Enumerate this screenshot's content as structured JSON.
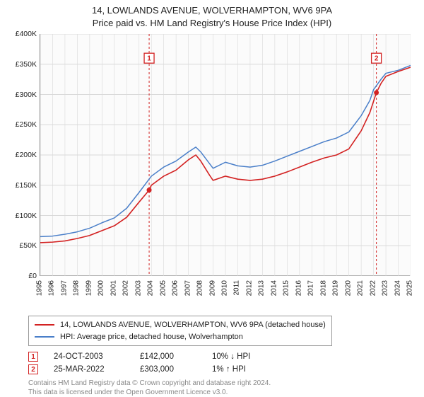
{
  "title_line1": "14, LOWLANDS AVENUE, WOLVERHAMPTON, WV6 9PA",
  "title_line2": "Price paid vs. HM Land Registry's House Price Index (HPI)",
  "chart": {
    "type": "line",
    "background_color": "#fbfbfb",
    "grid_color": "#d9d9d9",
    "axis_color": "#888888",
    "ylim": [
      0,
      400000
    ],
    "ytick_step": 50000,
    "y_tick_labels": [
      "£0",
      "£50K",
      "£100K",
      "£150K",
      "£200K",
      "£250K",
      "£300K",
      "£350K",
      "£400K"
    ],
    "xlim": [
      1995,
      2025
    ],
    "x_ticks": [
      1995,
      1996,
      1997,
      1998,
      1999,
      2000,
      2001,
      2002,
      2003,
      2004,
      2005,
      2006,
      2007,
      2008,
      2009,
      2010,
      2011,
      2012,
      2013,
      2014,
      2015,
      2016,
      2017,
      2018,
      2019,
      2020,
      2021,
      2022,
      2023,
      2024,
      2025
    ],
    "label_fontsize": 10.5,
    "series": [
      {
        "name": "property",
        "legend_label": "14, LOWLANDS AVENUE, WOLVERHAMPTON, WV6 9PA (detached house)",
        "color": "#d32222",
        "line_width": 1.6,
        "points": [
          [
            1995,
            55000
          ],
          [
            1996,
            56000
          ],
          [
            1997,
            58000
          ],
          [
            1998,
            62000
          ],
          [
            1999,
            67000
          ],
          [
            2000,
            75000
          ],
          [
            2001,
            83000
          ],
          [
            2002,
            97000
          ],
          [
            2003,
            122000
          ],
          [
            2003.82,
            142000
          ],
          [
            2004,
            150000
          ],
          [
            2005,
            165000
          ],
          [
            2006,
            175000
          ],
          [
            2007,
            192000
          ],
          [
            2007.6,
            200000
          ],
          [
            2008,
            190000
          ],
          [
            2008.7,
            167000
          ],
          [
            2009,
            158000
          ],
          [
            2010,
            165000
          ],
          [
            2011,
            160000
          ],
          [
            2012,
            158000
          ],
          [
            2013,
            160000
          ],
          [
            2014,
            165000
          ],
          [
            2015,
            172000
          ],
          [
            2016,
            180000
          ],
          [
            2017,
            188000
          ],
          [
            2018,
            195000
          ],
          [
            2019,
            200000
          ],
          [
            2020,
            210000
          ],
          [
            2021,
            240000
          ],
          [
            2021.7,
            270000
          ],
          [
            2022.23,
            303000
          ],
          [
            2022.6,
            318000
          ],
          [
            2023,
            330000
          ],
          [
            2024,
            338000
          ],
          [
            2025,
            345000
          ]
        ]
      },
      {
        "name": "hpi",
        "legend_label": "HPI: Average price, detached house, Wolverhampton",
        "color": "#4a7fc9",
        "line_width": 1.5,
        "points": [
          [
            1995,
            65000
          ],
          [
            1996,
            66000
          ],
          [
            1997,
            69000
          ],
          [
            1998,
            73000
          ],
          [
            1999,
            79000
          ],
          [
            2000,
            88000
          ],
          [
            2001,
            96000
          ],
          [
            2002,
            112000
          ],
          [
            2003,
            138000
          ],
          [
            2004,
            165000
          ],
          [
            2005,
            180000
          ],
          [
            2006,
            190000
          ],
          [
            2007,
            205000
          ],
          [
            2007.6,
            213000
          ],
          [
            2008,
            205000
          ],
          [
            2008.7,
            186000
          ],
          [
            2009,
            178000
          ],
          [
            2010,
            188000
          ],
          [
            2011,
            182000
          ],
          [
            2012,
            180000
          ],
          [
            2013,
            183000
          ],
          [
            2014,
            190000
          ],
          [
            2015,
            198000
          ],
          [
            2016,
            206000
          ],
          [
            2017,
            214000
          ],
          [
            2018,
            222000
          ],
          [
            2019,
            228000
          ],
          [
            2020,
            238000
          ],
          [
            2021,
            265000
          ],
          [
            2021.7,
            290000
          ],
          [
            2022,
            308000
          ],
          [
            2022.6,
            325000
          ],
          [
            2023,
            335000
          ],
          [
            2024,
            340000
          ],
          [
            2025,
            348000
          ]
        ]
      }
    ],
    "event_markers": [
      {
        "n": "1",
        "x": 2003.82,
        "y": 142000,
        "label_y": 360000,
        "line_color": "#d32222",
        "dash": "3,3"
      },
      {
        "n": "2",
        "x": 2022.23,
        "y": 303000,
        "label_y": 360000,
        "line_color": "#d32222",
        "dash": "3,3"
      }
    ]
  },
  "legend": {
    "items": [
      {
        "color": "#d32222",
        "label": "14, LOWLANDS AVENUE, WOLVERHAMPTON, WV6 9PA (detached house)"
      },
      {
        "color": "#4a7fc9",
        "label": "HPI: Average price, detached house, Wolverhampton"
      }
    ]
  },
  "events": [
    {
      "n": "1",
      "date": "24-OCT-2003",
      "price": "£142,000",
      "diff": "10% ↓ HPI"
    },
    {
      "n": "2",
      "date": "25-MAR-2022",
      "price": "£303,000",
      "diff": "1% ↑ HPI"
    }
  ],
  "attribution": {
    "line1": "Contains HM Land Registry data © Crown copyright and database right 2024.",
    "line2": "This data is licensed under the Open Government Licence v3.0."
  }
}
